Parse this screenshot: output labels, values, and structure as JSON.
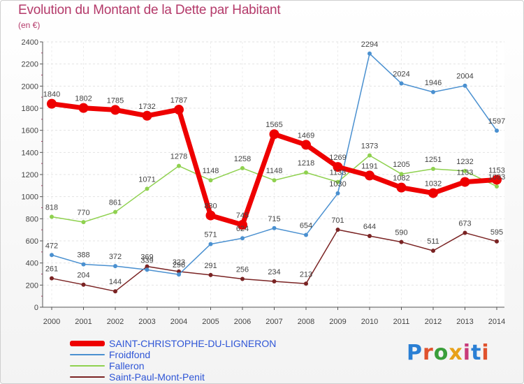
{
  "header": {
    "title": "Evolution du Montant de la Dette par Habitant",
    "subtitle": "(en €)"
  },
  "logo": {
    "text": "Proxiti",
    "colors": [
      "#2a7fd4",
      "#e0522d",
      "#3a9e3a",
      "#e7a11a",
      "#c83a7a",
      "#2a7fd4",
      "#e0522d"
    ]
  },
  "chart_data": {
    "type": "line",
    "title": "Evolution du Montant de la Dette par Habitant",
    "subtitle": "(en €)",
    "xlabel": "",
    "ylabel": "",
    "x": [
      "2000",
      "2001",
      "2002",
      "2003",
      "2004",
      "2005",
      "2006",
      "2007",
      "2008",
      "2009",
      "2010",
      "2011",
      "2012",
      "2013",
      "2014"
    ],
    "ylim": [
      0,
      2400
    ],
    "yticks": [
      0,
      200,
      400,
      600,
      800,
      1000,
      1200,
      1400,
      1600,
      1800,
      2000,
      2200,
      2400
    ],
    "grid": true,
    "legend": "bottom",
    "series": [
      {
        "name": "SAINT-CHRISTOPHE-DU-LIGNERON",
        "color": "#ee0000",
        "values": [
          1840,
          1802,
          1785,
          1732,
          1787,
          830,
          745,
          1565,
          1469,
          1269,
          1191,
          1082,
          1032,
          1133,
          1153
        ],
        "data_labels": [
          "1840",
          "1802",
          "1785",
          "1732",
          "1787",
          "830",
          "745",
          "1565",
          "1469",
          "1269",
          "1191",
          "1082",
          "1032",
          "1133",
          "1153"
        ]
      },
      {
        "name": "Froidfond",
        "color": "#4a90d0",
        "values": [
          472,
          388,
          372,
          339,
          296,
          571,
          624,
          715,
          654,
          1030,
          2294,
          2024,
          1946,
          2004,
          1597
        ],
        "data_labels": [
          "472",
          "388",
          "372",
          "339",
          "296",
          "571",
          "624",
          "715",
          "654",
          "1030",
          "2294",
          "2024",
          "1946",
          "2004",
          "1597"
        ]
      },
      {
        "name": "Falleron",
        "color": "#8fd14f",
        "values": [
          818,
          770,
          861,
          1071,
          1278,
          1148,
          1258,
          1148,
          1218,
          1133,
          1373,
          1205,
          1251,
          1232,
          1093
        ],
        "data_labels": [
          "818",
          "770",
          "861",
          "1071",
          "1278",
          "1148",
          "1258",
          "1148",
          "1218",
          "1133",
          "1373",
          "1205",
          "1251",
          "1232",
          "1093"
        ]
      },
      {
        "name": "Saint-Paul-Mont-Penit",
        "color": "#7a2323",
        "values": [
          261,
          204,
          144,
          369,
          323,
          291,
          256,
          234,
          213,
          701,
          644,
          590,
          511,
          673,
          595
        ],
        "data_labels": [
          "261",
          "204",
          "144",
          "369",
          "323",
          "291",
          "256",
          "234",
          "213",
          "701",
          "644",
          "590",
          "511",
          "673",
          "595"
        ]
      }
    ]
  }
}
